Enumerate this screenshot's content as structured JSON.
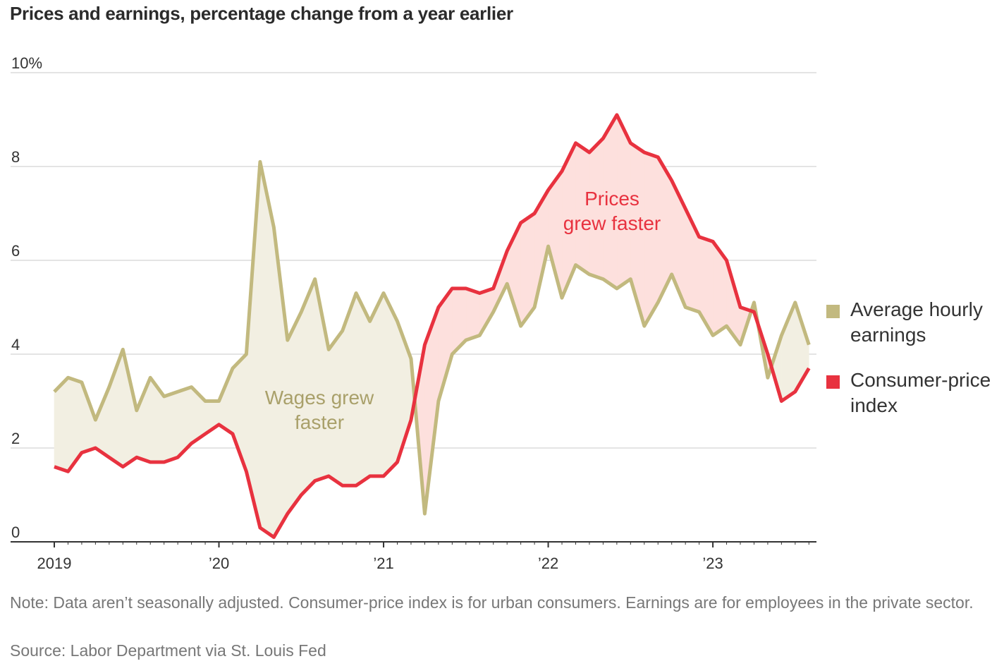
{
  "title": "Prices and earnings, percentage change from a year earlier",
  "note": "Note: Data aren’t seasonally adjusted. Consumer-price index is for urban consumers. Earnings are for employees in the private sector.",
  "source": "Source: Labor Department via St. Louis Fed",
  "colors": {
    "wages": "#c2b97f",
    "cpi": "#e8323f",
    "wages_fill": "#f2efe2",
    "cpi_fill": "#fde0dd",
    "grid": "#e4e4e4",
    "axis": "#333333"
  },
  "chart_data": {
    "type": "line",
    "title": "Prices and earnings, percentage change from a year earlier",
    "xlabel": "",
    "ylabel": "",
    "ylim": [
      0,
      10
    ],
    "yticks": [
      0,
      2,
      4,
      6,
      8,
      10
    ],
    "ytick_labels": [
      "0",
      "2",
      "4",
      "6",
      "8",
      "10%"
    ],
    "xtick_labels": [
      "2019",
      "’20",
      "’21",
      "’22",
      "’23"
    ],
    "x_start": "2019-01",
    "x_frequency": "monthly",
    "grid": true,
    "legend_placement": "right",
    "annotations": [
      {
        "text_lines": [
          "Wages grew",
          "faster"
        ],
        "color": "#a9a06a"
      },
      {
        "text_lines": [
          "Prices",
          "grew faster"
        ],
        "color": "#e8323f"
      }
    ],
    "series": [
      {
        "name": "Average hourly earnings",
        "legend_lines": [
          "Average hourly",
          "earnings"
        ],
        "values": [
          3.2,
          3.5,
          3.4,
          2.6,
          3.3,
          4.1,
          2.8,
          3.5,
          3.1,
          3.2,
          3.3,
          3.0,
          3.0,
          3.7,
          4.0,
          8.1,
          6.7,
          4.3,
          4.9,
          5.6,
          4.1,
          4.5,
          5.3,
          4.7,
          5.3,
          4.7,
          3.9,
          0.6,
          3.0,
          4.0,
          4.3,
          4.4,
          4.9,
          5.5,
          4.6,
          5.0,
          6.3,
          5.2,
          5.9,
          5.7,
          5.6,
          5.4,
          5.6,
          4.6,
          5.1,
          5.7,
          5.0,
          4.9,
          4.4,
          4.6,
          4.2,
          5.1,
          3.5,
          4.4,
          5.1,
          4.2
        ]
      },
      {
        "name": "Consumer-price index",
        "legend_lines": [
          "Consumer-price",
          "index"
        ],
        "values": [
          1.6,
          1.5,
          1.9,
          2.0,
          1.8,
          1.6,
          1.8,
          1.7,
          1.7,
          1.8,
          2.1,
          2.3,
          2.5,
          2.3,
          1.5,
          0.3,
          0.1,
          0.6,
          1.0,
          1.3,
          1.4,
          1.2,
          1.2,
          1.4,
          1.4,
          1.7,
          2.6,
          4.2,
          5.0,
          5.4,
          5.4,
          5.3,
          5.4,
          6.2,
          6.8,
          7.0,
          7.5,
          7.9,
          8.5,
          8.3,
          8.6,
          9.1,
          8.5,
          8.3,
          8.2,
          7.7,
          7.1,
          6.5,
          6.4,
          6.0,
          5.0,
          4.9,
          4.0,
          3.0,
          3.2,
          3.7
        ]
      }
    ]
  }
}
